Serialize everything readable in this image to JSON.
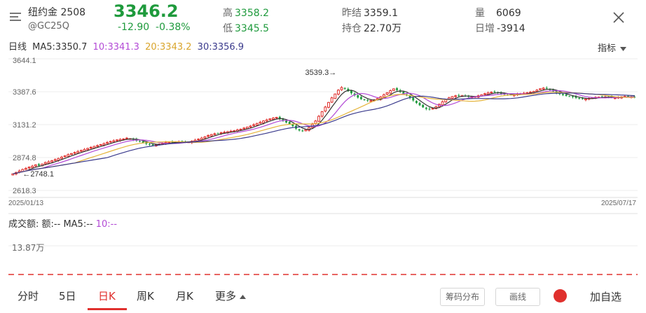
{
  "header": {
    "title": "纽约金 2508",
    "code": "@GC25Q",
    "price": "3346.2",
    "change": "-12.90",
    "change_pct": "-0.38%",
    "high_label": "高",
    "high": "3358.2",
    "low_label": "低",
    "low": "3345.5",
    "prev_close_label": "昨结",
    "prev_close": "3359.1",
    "open_interest_label": "持仓",
    "open_interest": "22.70万",
    "volume_label": "量",
    "volume": "6069",
    "daily_inc_label": "日增",
    "daily_inc": "-3914",
    "close_icon": "close-icon",
    "menu_icon": "menu-icon"
  },
  "ma_bar": {
    "period": "日线",
    "ma5": "MA5:3350.7",
    "ma10": "10:3341.3",
    "ma20": "20:3343.2",
    "ma30": "30:3356.9",
    "indicator_label": "指标"
  },
  "colors": {
    "up": "#e0302d",
    "down": "#1e9a3c",
    "ma5": "#333333",
    "ma10": "#b34ad6",
    "ma20": "#e5b43b",
    "ma30": "#3a3a8c"
  },
  "chart_data": {
    "type": "candlestick",
    "y_ticks": [
      "3644.1",
      "3387.6",
      "3131.2",
      "2874.8",
      "2618.3"
    ],
    "ylim": [
      2618.3,
      3644.1
    ],
    "x_start_label": "2025/01/13",
    "x_end_label": "2025/07/17",
    "max_marker": "3539.3",
    "min_marker": "2748.1",
    "closes": [
      2748,
      2758,
      2770,
      2782,
      2790,
      2800,
      2808,
      2818,
      2812,
      2824,
      2836,
      2842,
      2850,
      2858,
      2868,
      2878,
      2888,
      2898,
      2906,
      2914,
      2922,
      2930,
      2938,
      2946,
      2954,
      2962,
      2968,
      2976,
      2984,
      2992,
      3000,
      3006,
      3012,
      3016,
      3020,
      3026,
      3022,
      3014,
      3006,
      3000,
      2990,
      2982,
      2976,
      2970,
      2974,
      2980,
      2986,
      2992,
      2994,
      2996,
      2996,
      2998,
      3000,
      2994,
      2996,
      3002,
      3010,
      3018,
      3026,
      3036,
      3046,
      3054,
      3060,
      3064,
      3068,
      3072,
      3076,
      3080,
      3084,
      3090,
      3096,
      3104,
      3112,
      3120,
      3130,
      3140,
      3150,
      3160,
      3168,
      3176,
      3182,
      3188,
      3176,
      3162,
      3148,
      3136,
      3120,
      3100,
      3086,
      3080,
      3092,
      3108,
      3134,
      3160,
      3196,
      3232,
      3268,
      3304,
      3340,
      3370,
      3400,
      3420,
      3410,
      3392,
      3376,
      3360,
      3342,
      3330,
      3322,
      3318,
      3318,
      3324,
      3334,
      3348,
      3364,
      3380,
      3396,
      3410,
      3400,
      3386,
      3372,
      3358,
      3340,
      3320,
      3300,
      3282,
      3266,
      3254,
      3250,
      3258,
      3270,
      3290,
      3310,
      3326,
      3340,
      3350,
      3356,
      3358,
      3356,
      3352,
      3348,
      3346,
      3350,
      3356,
      3364,
      3372,
      3378,
      3384,
      3386,
      3380,
      3372,
      3366,
      3362,
      3362,
      3364,
      3368,
      3372,
      3376,
      3380,
      3384,
      3390,
      3400,
      3410,
      3416,
      3412,
      3402,
      3390,
      3380,
      3370,
      3362,
      3356,
      3352,
      3346,
      3340,
      3334,
      3330,
      3332,
      3336,
      3340,
      3344,
      3346,
      3348,
      3346,
      3344,
      3342,
      3340,
      3344,
      3348,
      3352,
      3350,
      3348,
      3346
    ],
    "volume_label": "成交额",
    "volume_values": "额:--",
    "volume_ma5": "MA5:--",
    "volume_ma10": "10:--",
    "volume_level": "13.87万"
  },
  "tabs": [
    {
      "label": "分时",
      "active": false
    },
    {
      "label": "5日",
      "active": false
    },
    {
      "label": "日K",
      "active": true
    },
    {
      "label": "周K",
      "active": false
    },
    {
      "label": "月K",
      "active": false
    },
    {
      "label": "更多",
      "active": false
    }
  ],
  "tools": {
    "chip_dist": "筹码分布",
    "draw_line": "画线",
    "add_watch": "加自选"
  }
}
